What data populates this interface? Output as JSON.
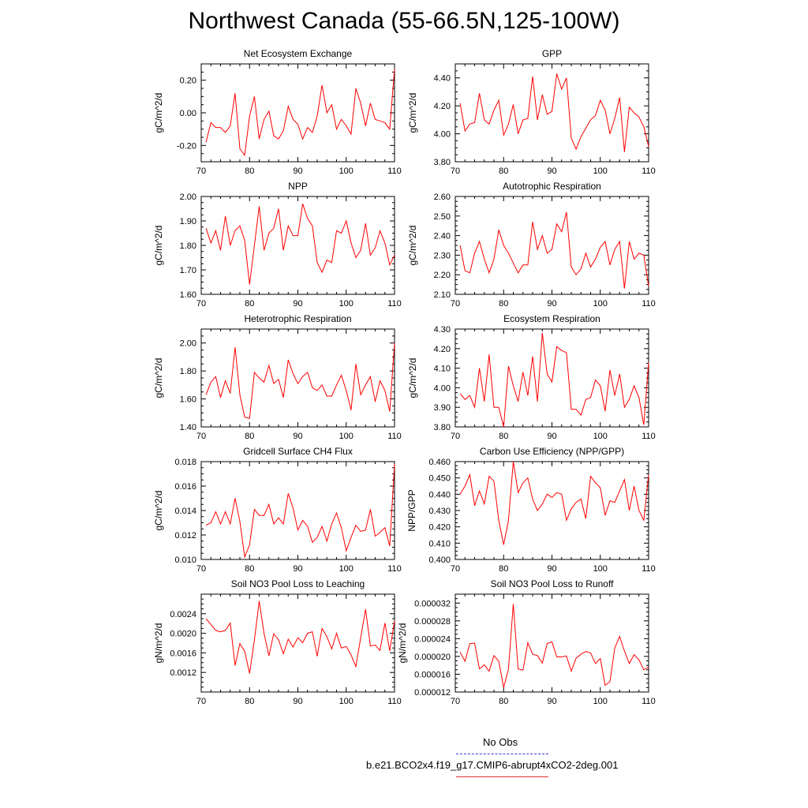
{
  "title": "Northwest Canada (55-66.5N,125-100W)",
  "colors": {
    "model_line": "#ff0000",
    "obs_line": "#3b3bd0",
    "axis": "#000000"
  },
  "legend": {
    "obs_label": "No Obs",
    "run_label": "b.e21.BCO2x4.f19_g17.CMIP6-abrupt4xCO2-2deg.001"
  },
  "chart_data": [
    {
      "type": "line",
      "title": "Net Ecosystem Exchange",
      "ylabel": "gC/m^2/d",
      "xlim": [
        70,
        110
      ],
      "ylim": [
        -0.3,
        0.3
      ],
      "xticks": [
        "70",
        "80",
        "90",
        "100",
        "110"
      ],
      "yticks": [
        -0.2,
        0.0,
        0.2
      ],
      "ytick_labels": [
        "-0.20",
        "0.00",
        "0.20"
      ],
      "x": [
        71,
        72,
        73,
        74,
        75,
        76,
        77,
        78,
        79,
        80,
        81,
        82,
        83,
        84,
        85,
        86,
        87,
        88,
        89,
        90,
        91,
        92,
        93,
        94,
        95,
        96,
        97,
        98,
        99,
        100,
        101,
        102,
        103,
        104,
        105,
        106,
        107,
        108,
        109,
        110
      ],
      "values": [
        -0.18,
        -0.06,
        -0.09,
        -0.09,
        -0.12,
        -0.08,
        0.12,
        -0.22,
        -0.26,
        -0.02,
        0.1,
        -0.16,
        -0.04,
        0.01,
        -0.14,
        -0.16,
        -0.11,
        0.04,
        -0.04,
        -0.07,
        -0.16,
        -0.09,
        -0.12,
        -0.02,
        0.17,
        0.0,
        0.05,
        -0.1,
        -0.04,
        -0.08,
        -0.13,
        0.15,
        0.06,
        -0.08,
        0.06,
        -0.04,
        -0.05,
        -0.06,
        -0.1,
        0.27
      ]
    },
    {
      "type": "line",
      "title": "GPP",
      "ylabel": "gC/m^2/d",
      "xlim": [
        70,
        110
      ],
      "ylim": [
        3.8,
        4.5
      ],
      "xticks": [
        "70",
        "80",
        "90",
        "100",
        "110"
      ],
      "yticks": [
        3.8,
        4.0,
        4.2,
        4.4
      ],
      "ytick_labels": [
        "3.80",
        "4.00",
        "4.20",
        "4.40"
      ],
      "x": [
        71,
        72,
        73,
        74,
        75,
        76,
        77,
        78,
        79,
        80,
        81,
        82,
        83,
        84,
        85,
        86,
        87,
        88,
        89,
        90,
        91,
        92,
        93,
        94,
        95,
        96,
        97,
        98,
        99,
        100,
        101,
        102,
        103,
        104,
        105,
        106,
        107,
        108,
        109,
        110
      ],
      "values": [
        4.22,
        4.02,
        4.07,
        4.08,
        4.29,
        4.1,
        4.07,
        4.17,
        4.24,
        3.99,
        4.07,
        4.21,
        4.0,
        4.1,
        4.11,
        4.41,
        4.1,
        4.28,
        4.14,
        4.16,
        4.43,
        4.32,
        4.4,
        3.97,
        3.89,
        3.98,
        4.04,
        4.1,
        4.13,
        4.24,
        4.17,
        4.0,
        4.11,
        4.26,
        3.87,
        4.19,
        4.15,
        4.12,
        4.05,
        3.91
      ]
    },
    {
      "type": "line",
      "title": "NPP",
      "ylabel": "gC/m^2/d",
      "xlim": [
        70,
        110
      ],
      "ylim": [
        1.6,
        2.0
      ],
      "xticks": [
        "70",
        "80",
        "90",
        "100",
        "110"
      ],
      "yticks": [
        1.6,
        1.7,
        1.8,
        1.9,
        2.0
      ],
      "ytick_labels": [
        "1.60",
        "1.70",
        "1.80",
        "1.90",
        "2.00"
      ],
      "x": [
        71,
        72,
        73,
        74,
        75,
        76,
        77,
        78,
        79,
        80,
        81,
        82,
        83,
        84,
        85,
        86,
        87,
        88,
        89,
        90,
        91,
        92,
        93,
        94,
        95,
        96,
        97,
        98,
        99,
        100,
        101,
        102,
        103,
        104,
        105,
        106,
        107,
        108,
        109,
        110
      ],
      "values": [
        1.87,
        1.81,
        1.86,
        1.78,
        1.92,
        1.8,
        1.86,
        1.88,
        1.82,
        1.64,
        1.8,
        1.96,
        1.78,
        1.85,
        1.87,
        1.95,
        1.78,
        1.88,
        1.84,
        1.84,
        1.97,
        1.91,
        1.88,
        1.73,
        1.69,
        1.74,
        1.73,
        1.86,
        1.85,
        1.9,
        1.81,
        1.75,
        1.78,
        1.89,
        1.76,
        1.79,
        1.86,
        1.81,
        1.72,
        1.76
      ]
    },
    {
      "type": "line",
      "title": "Autotrophic Respiration",
      "ylabel": "gC/m^2/d",
      "xlim": [
        70,
        110
      ],
      "ylim": [
        2.1,
        2.6
      ],
      "xticks": [
        "70",
        "80",
        "90",
        "100",
        "110"
      ],
      "yticks": [
        2.1,
        2.2,
        2.3,
        2.4,
        2.5,
        2.6
      ],
      "ytick_labels": [
        "2.10",
        "2.20",
        "2.30",
        "2.40",
        "2.50",
        "2.60"
      ],
      "x": [
        71,
        72,
        73,
        74,
        75,
        76,
        77,
        78,
        79,
        80,
        81,
        82,
        83,
        84,
        85,
        86,
        87,
        88,
        89,
        90,
        91,
        92,
        93,
        94,
        95,
        96,
        97,
        98,
        99,
        100,
        101,
        102,
        103,
        104,
        105,
        106,
        107,
        108,
        109,
        110
      ],
      "values": [
        2.35,
        2.22,
        2.21,
        2.31,
        2.37,
        2.28,
        2.21,
        2.28,
        2.43,
        2.35,
        2.31,
        2.26,
        2.21,
        2.25,
        2.25,
        2.47,
        2.33,
        2.4,
        2.31,
        2.33,
        2.46,
        2.42,
        2.52,
        2.24,
        2.2,
        2.23,
        2.31,
        2.24,
        2.28,
        2.34,
        2.37,
        2.25,
        2.33,
        2.37,
        2.13,
        2.37,
        2.28,
        2.31,
        2.3,
        2.14
      ]
    },
    {
      "type": "line",
      "title": "Heterotrophic Respiration",
      "ylabel": "gC/m^2/d",
      "xlim": [
        70,
        110
      ],
      "ylim": [
        1.4,
        2.1
      ],
      "xticks": [
        "70",
        "80",
        "90",
        "100",
        "110"
      ],
      "yticks": [
        1.4,
        1.6,
        1.8,
        2.0
      ],
      "ytick_labels": [
        "1.40",
        "1.60",
        "1.80",
        "2.00"
      ],
      "x": [
        71,
        72,
        73,
        74,
        75,
        76,
        77,
        78,
        79,
        80,
        81,
        82,
        83,
        84,
        85,
        86,
        87,
        88,
        89,
        90,
        91,
        92,
        93,
        94,
        95,
        96,
        97,
        98,
        99,
        100,
        101,
        102,
        103,
        104,
        105,
        106,
        107,
        108,
        109,
        110
      ],
      "values": [
        1.63,
        1.72,
        1.76,
        1.61,
        1.73,
        1.64,
        1.97,
        1.63,
        1.47,
        1.46,
        1.79,
        1.75,
        1.72,
        1.84,
        1.71,
        1.74,
        1.61,
        1.88,
        1.78,
        1.71,
        1.76,
        1.79,
        1.68,
        1.66,
        1.7,
        1.62,
        1.62,
        1.7,
        1.77,
        1.66,
        1.52,
        1.85,
        1.63,
        1.7,
        1.76,
        1.58,
        1.73,
        1.66,
        1.51,
        2.0
      ]
    },
    {
      "type": "line",
      "title": "Ecosystem Respiration",
      "ylabel": "gC/m^2/d",
      "xlim": [
        70,
        110
      ],
      "ylim": [
        3.8,
        4.3
      ],
      "xticks": [
        "70",
        "80",
        "90",
        "100",
        "110"
      ],
      "yticks": [
        3.8,
        3.9,
        4.0,
        4.1,
        4.2,
        4.3
      ],
      "ytick_labels": [
        "3.80",
        "3.90",
        "4.00",
        "4.10",
        "4.20",
        "4.30"
      ],
      "x": [
        71,
        72,
        73,
        74,
        75,
        76,
        77,
        78,
        79,
        80,
        81,
        82,
        83,
        84,
        85,
        86,
        87,
        88,
        89,
        90,
        91,
        92,
        93,
        94,
        95,
        96,
        97,
        98,
        99,
        100,
        101,
        102,
        103,
        104,
        105,
        106,
        107,
        108,
        109,
        110
      ],
      "values": [
        3.97,
        3.94,
        3.96,
        3.9,
        4.1,
        3.93,
        4.17,
        3.9,
        3.9,
        3.8,
        4.11,
        4.01,
        3.93,
        4.08,
        3.96,
        4.16,
        3.93,
        4.28,
        4.07,
        4.03,
        4.21,
        4.19,
        4.18,
        3.89,
        3.89,
        3.86,
        3.94,
        3.95,
        4.04,
        4.01,
        3.88,
        4.09,
        3.96,
        4.07,
        3.9,
        3.94,
        4.01,
        3.95,
        3.81,
        4.13
      ]
    },
    {
      "type": "line",
      "title": "Gridcell Surface CH4 Flux",
      "ylabel": "gC/m^2/d",
      "xlim": [
        70,
        110
      ],
      "ylim": [
        0.01,
        0.018
      ],
      "xticks": [
        "70",
        "80",
        "90",
        "100",
        "110"
      ],
      "yticks": [
        0.01,
        0.012,
        0.014,
        0.016,
        0.018
      ],
      "ytick_labels": [
        "0.010",
        "0.012",
        "0.014",
        "0.016",
        "0.018"
      ],
      "x": [
        71,
        72,
        73,
        74,
        75,
        76,
        77,
        78,
        79,
        80,
        81,
        82,
        83,
        84,
        85,
        86,
        87,
        88,
        89,
        90,
        91,
        92,
        93,
        94,
        95,
        96,
        97,
        98,
        99,
        100,
        101,
        102,
        103,
        104,
        105,
        106,
        107,
        108,
        109,
        110
      ],
      "values": [
        0.0128,
        0.013,
        0.0139,
        0.0129,
        0.0139,
        0.0129,
        0.015,
        0.0131,
        0.0102,
        0.0112,
        0.0141,
        0.0136,
        0.0136,
        0.0145,
        0.0129,
        0.0134,
        0.0129,
        0.0154,
        0.0142,
        0.0124,
        0.0132,
        0.0127,
        0.0114,
        0.0118,
        0.0127,
        0.0115,
        0.0129,
        0.0138,
        0.0126,
        0.0107,
        0.0118,
        0.0128,
        0.0123,
        0.0124,
        0.0141,
        0.0119,
        0.0122,
        0.0126,
        0.0111,
        0.0178
      ]
    },
    {
      "type": "line",
      "title": "Carbon Use Efficiency (NPP/GPP)",
      "ylabel": "NPP/GPP",
      "xlim": [
        70,
        110
      ],
      "ylim": [
        0.4,
        0.46
      ],
      "xticks": [
        "70",
        "80",
        "90",
        "100",
        "110"
      ],
      "yticks": [
        0.4,
        0.41,
        0.42,
        0.43,
        0.44,
        0.45,
        0.46
      ],
      "ytick_labels": [
        "0.400",
        "0.410",
        "0.420",
        "0.430",
        "0.440",
        "0.450",
        "0.460"
      ],
      "x": [
        71,
        72,
        73,
        74,
        75,
        76,
        77,
        78,
        79,
        80,
        81,
        82,
        83,
        84,
        85,
        86,
        87,
        88,
        89,
        90,
        91,
        92,
        93,
        94,
        95,
        96,
        97,
        98,
        99,
        100,
        101,
        102,
        103,
        104,
        105,
        106,
        107,
        108,
        109,
        110
      ],
      "values": [
        0.44,
        0.445,
        0.452,
        0.433,
        0.442,
        0.434,
        0.451,
        0.448,
        0.424,
        0.409,
        0.424,
        0.46,
        0.441,
        0.447,
        0.45,
        0.437,
        0.43,
        0.434,
        0.44,
        0.438,
        0.441,
        0.44,
        0.424,
        0.431,
        0.435,
        0.437,
        0.425,
        0.451,
        0.447,
        0.444,
        0.427,
        0.436,
        0.435,
        0.442,
        0.449,
        0.43,
        0.445,
        0.43,
        0.424,
        0.452
      ]
    },
    {
      "type": "line",
      "title": "Soil NO3 Pool Loss to Leaching",
      "ylabel": "gN/m^2/d",
      "xlim": [
        70,
        110
      ],
      "ylim": [
        0.0008,
        0.0028
      ],
      "xticks": [
        "70",
        "80",
        "90",
        "100",
        "110"
      ],
      "yticks": [
        0.0012,
        0.0016,
        0.002,
        0.0024
      ],
      "ytick_labels": [
        "0.0012",
        "0.0016",
        "0.0020",
        "0.0024"
      ],
      "x": [
        71,
        72,
        73,
        74,
        75,
        76,
        77,
        78,
        79,
        80,
        81,
        82,
        83,
        84,
        85,
        86,
        87,
        88,
        89,
        90,
        91,
        92,
        93,
        94,
        95,
        96,
        97,
        98,
        99,
        100,
        101,
        102,
        103,
        104,
        105,
        106,
        107,
        108,
        109,
        110
      ],
      "values": [
        0.0023,
        0.00218,
        0.00206,
        0.00203,
        0.00206,
        0.00221,
        0.00134,
        0.00179,
        0.00163,
        0.00118,
        0.00186,
        0.00266,
        0.002,
        0.00154,
        0.00199,
        0.00187,
        0.00158,
        0.00188,
        0.00172,
        0.00191,
        0.00181,
        0.002,
        0.00203,
        0.00153,
        0.0021,
        0.00193,
        0.00168,
        0.002,
        0.0017,
        0.00173,
        0.00156,
        0.00132,
        0.00191,
        0.00249,
        0.00174,
        0.00176,
        0.00165,
        0.00221,
        0.00164,
        0.00225
      ]
    },
    {
      "type": "line",
      "title": "Soil NO3 Pool Loss to Runoff",
      "ylabel": "gN/m^2/d",
      "xlim": [
        70,
        110
      ],
      "ylim": [
        1.2e-05,
        3.4e-05
      ],
      "xticks": [
        "70",
        "80",
        "90",
        "100",
        "110"
      ],
      "yticks": [
        1.2e-05,
        1.6e-05,
        2e-05,
        2.4e-05,
        2.8e-05,
        3.2e-05
      ],
      "ytick_labels": [
        "0.000012",
        "0.000016",
        "0.000020",
        "0.000024",
        "0.000028",
        "0.000032"
      ],
      "x": [
        71,
        72,
        73,
        74,
        75,
        76,
        77,
        78,
        79,
        80,
        81,
        82,
        83,
        84,
        85,
        86,
        87,
        88,
        89,
        90,
        91,
        92,
        93,
        94,
        95,
        96,
        97,
        98,
        99,
        100,
        101,
        102,
        103,
        104,
        105,
        106,
        107,
        108,
        109,
        110
      ],
      "values": [
        2.1e-05,
        1.89e-05,
        2.29e-05,
        2.3e-05,
        1.72e-05,
        1.81e-05,
        1.67e-05,
        2.02e-05,
        1.89e-05,
        1.3e-05,
        1.72e-05,
        3.18e-05,
        1.72e-05,
        1.69e-05,
        2.31e-05,
        2.05e-05,
        2.02e-05,
        1.85e-05,
        2.29e-05,
        2.33e-05,
        1.99e-05,
        1.99e-05,
        2.01e-05,
        1.67e-05,
        1.96e-05,
        2.05e-05,
        2.11e-05,
        2.08e-05,
        1.84e-05,
        1.95e-05,
        1.35e-05,
        1.43e-05,
        2.19e-05,
        2.45e-05,
        2.12e-05,
        1.84e-05,
        2.04e-05,
        1.92e-05,
        1.7e-05,
        1.76e-05
      ]
    }
  ]
}
